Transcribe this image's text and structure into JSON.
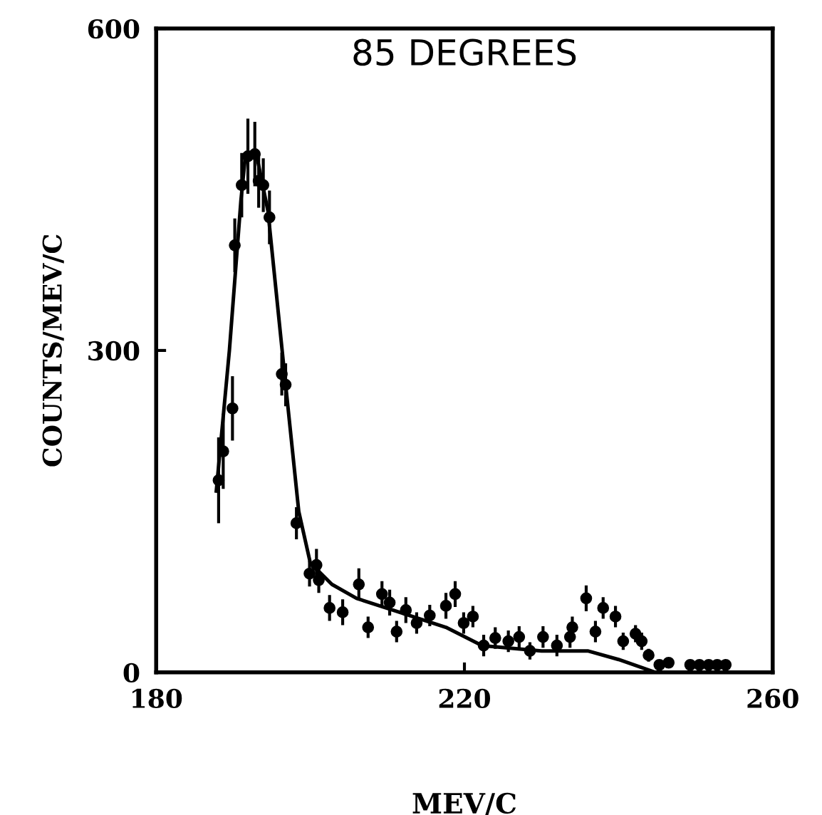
{
  "chart_data": {
    "type": "scatter",
    "title": "85 DEGREES",
    "xlabel": "MEV/C",
    "ylabel": "COUNTS/MEV/C",
    "xlim": [
      180,
      260
    ],
    "ylim": [
      0,
      600
    ],
    "xticks": [
      180,
      220,
      260
    ],
    "yticks": [
      0,
      300,
      600
    ],
    "grid": false,
    "marker": "circle",
    "series": [
      {
        "color": "#000000",
        "x": [
          188.1,
          188.7,
          189.9,
          190.2,
          191.1,
          191.9,
          192.8,
          193.3,
          193.9,
          194.7,
          196.3,
          196.8,
          198.2,
          199.9,
          200.8,
          201.1,
          202.5,
          204.2,
          206.3,
          207.5,
          209.3,
          210.3,
          211.2,
          212.4,
          213.8,
          215.5,
          217.6,
          218.8,
          219.9,
          221.1,
          222.5,
          224,
          225.7,
          227.1,
          228.5,
          230.2,
          232,
          233.7,
          234,
          235.8,
          237,
          238,
          239.6,
          240.6,
          242.2,
          243,
          243.9,
          245.3,
          246.5,
          249.3,
          250.5,
          251.7,
          252.8,
          253.9
        ],
        "values": [
          179,
          206,
          246,
          398,
          454,
          481,
          483,
          458,
          454,
          424,
          278,
          268,
          139,
          92,
          100,
          86,
          60,
          56,
          82,
          42,
          73,
          65,
          38,
          58,
          46,
          53,
          62,
          73,
          46,
          52,
          25,
          32,
          29,
          33,
          20,
          33,
          25,
          33,
          42,
          69,
          38,
          60,
          52,
          29,
          36,
          29,
          16,
          7,
          9,
          7,
          7,
          7,
          7,
          7
        ],
        "errors": [
          40,
          35,
          30,
          25,
          30,
          35,
          30,
          25,
          25,
          25,
          20,
          20,
          15,
          12,
          15,
          12,
          12,
          12,
          15,
          10,
          12,
          12,
          10,
          12,
          10,
          10,
          12,
          12,
          10,
          10,
          10,
          10,
          10,
          10,
          8,
          10,
          10,
          10,
          10,
          12,
          10,
          10,
          10,
          8,
          8,
          8,
          6,
          4,
          4,
          4,
          4,
          4,
          4,
          4
        ]
      },
      {
        "type": "line",
        "color": "#000000",
        "marker": "none",
        "x": [
          187.8,
          189.5,
          191,
          191.6,
          193,
          194.5,
          196.8,
          198.5,
          200,
          202.8,
          206,
          212,
          217.6,
          222.3,
          230,
          236,
          240,
          244.8,
          253
        ],
        "values": [
          169,
          300,
          440,
          483,
          483,
          430,
          268,
          150,
          102,
          82,
          69,
          55,
          42,
          25,
          20,
          20,
          12,
          0,
          0
        ]
      }
    ]
  }
}
